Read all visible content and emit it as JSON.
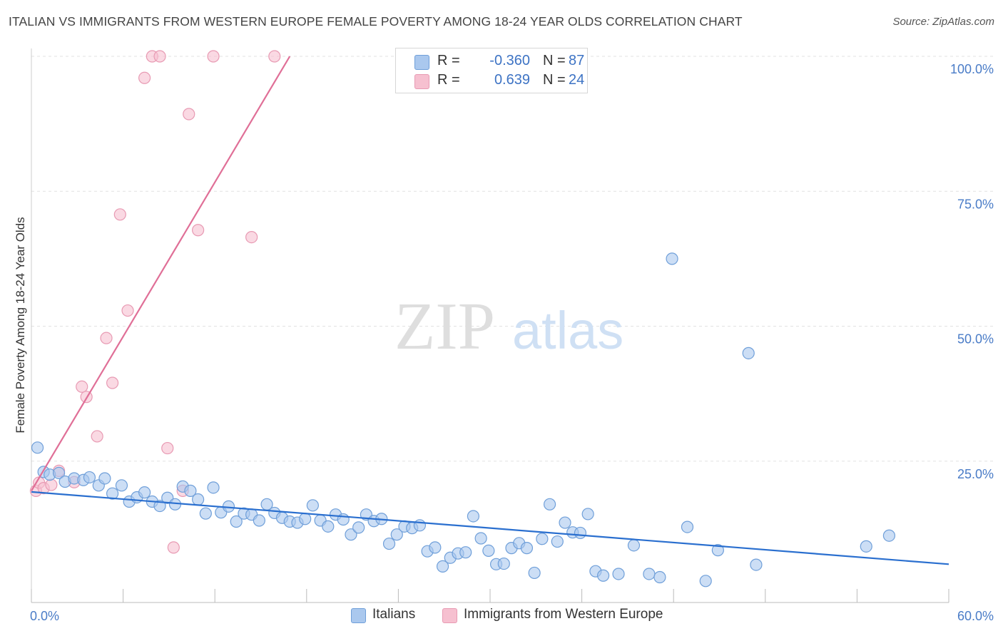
{
  "header": {
    "title": "ITALIAN VS IMMIGRANTS FROM WESTERN EUROPE FEMALE POVERTY AMONG 18-24 YEAR OLDS CORRELATION CHART",
    "source": "Source: ZipAtlas.com"
  },
  "watermark": {
    "zip": "ZIP",
    "atlas": "atlas"
  },
  "legend": {
    "italians": {
      "r_label": "R =",
      "r_value": "-0.360",
      "n_label": "N =",
      "n_value": "87"
    },
    "immigrants": {
      "r_label": "R =",
      "r_value": "0.639",
      "n_label": "N =",
      "n_value": "24"
    }
  },
  "bottom_legend": {
    "italians": "Italians",
    "immigrants": "Immigrants from Western Europe"
  },
  "colors": {
    "blue_fill": "#aac8ee",
    "blue_stroke": "#6f9fd9",
    "blue_line": "#2a6fcf",
    "pink_fill": "#f6c0d0",
    "pink_stroke": "#e89ab3",
    "pink_line": "#e06f97",
    "grid": "#e2e2e2",
    "tick_text": "#4a7cc7"
  },
  "chart_data": {
    "type": "scatter",
    "title": "ITALIAN VS IMMIGRANTS FROM WESTERN EUROPE FEMALE POVERTY AMONG 18-24 YEAR OLDS CORRELATION CHART",
    "xlabel": "",
    "ylabel": "Female Poverty Among 18-24 Year Olds",
    "xlim": [
      0,
      60
    ],
    "ylim": [
      0,
      100
    ],
    "x_tick_labels": [
      "0.0%",
      "60.0%"
    ],
    "y_ticks": [
      25,
      50,
      75,
      100
    ],
    "y_tick_labels": [
      "25.0%",
      "50.0%",
      "75.0%",
      "100.0%"
    ],
    "grid": true,
    "series": [
      {
        "name": "Italians",
        "color": "#aac8ee",
        "points": [
          [
            0.4,
            27.5
          ],
          [
            0.8,
            23.0
          ],
          [
            1.2,
            22.5
          ],
          [
            1.8,
            22.8
          ],
          [
            2.2,
            21.2
          ],
          [
            2.8,
            21.8
          ],
          [
            3.4,
            21.5
          ],
          [
            3.8,
            22.0
          ],
          [
            4.4,
            20.5
          ],
          [
            4.8,
            21.8
          ],
          [
            5.3,
            19.0
          ],
          [
            5.9,
            20.5
          ],
          [
            6.4,
            17.5
          ],
          [
            6.9,
            18.3
          ],
          [
            7.4,
            19.2
          ],
          [
            7.9,
            17.5
          ],
          [
            8.4,
            16.7
          ],
          [
            8.9,
            18.2
          ],
          [
            9.4,
            17.0
          ],
          [
            9.9,
            20.3
          ],
          [
            10.4,
            19.5
          ],
          [
            10.9,
            17.9
          ],
          [
            11.4,
            15.3
          ],
          [
            11.9,
            20.1
          ],
          [
            12.4,
            15.5
          ],
          [
            12.9,
            16.6
          ],
          [
            13.4,
            13.8
          ],
          [
            13.9,
            15.3
          ],
          [
            14.4,
            15.1
          ],
          [
            14.9,
            14.0
          ],
          [
            15.4,
            17.0
          ],
          [
            15.9,
            15.4
          ],
          [
            16.4,
            14.5
          ],
          [
            16.9,
            13.8
          ],
          [
            17.4,
            13.6
          ],
          [
            17.9,
            14.3
          ],
          [
            18.4,
            16.8
          ],
          [
            18.9,
            14.0
          ],
          [
            19.4,
            12.9
          ],
          [
            19.9,
            15.1
          ],
          [
            20.4,
            14.2
          ],
          [
            20.9,
            11.4
          ],
          [
            21.4,
            12.7
          ],
          [
            21.9,
            15.1
          ],
          [
            22.4,
            13.9
          ],
          [
            22.9,
            14.3
          ],
          [
            23.4,
            9.7
          ],
          [
            23.9,
            11.4
          ],
          [
            24.4,
            12.9
          ],
          [
            24.9,
            12.6
          ],
          [
            25.4,
            13.1
          ],
          [
            25.9,
            8.3
          ],
          [
            26.4,
            9.0
          ],
          [
            26.9,
            5.5
          ],
          [
            27.4,
            7.1
          ],
          [
            27.9,
            7.9
          ],
          [
            28.4,
            8.1
          ],
          [
            28.9,
            14.8
          ],
          [
            29.4,
            10.7
          ],
          [
            29.9,
            8.4
          ],
          [
            30.4,
            5.9
          ],
          [
            30.9,
            6.0
          ],
          [
            31.4,
            8.9
          ],
          [
            31.9,
            9.8
          ],
          [
            32.4,
            8.9
          ],
          [
            32.9,
            4.3
          ],
          [
            33.4,
            10.6
          ],
          [
            33.9,
            17.0
          ],
          [
            34.4,
            10.1
          ],
          [
            34.9,
            13.6
          ],
          [
            35.4,
            11.8
          ],
          [
            35.9,
            11.7
          ],
          [
            36.4,
            15.2
          ],
          [
            36.9,
            4.6
          ],
          [
            37.4,
            3.8
          ],
          [
            38.4,
            4.1
          ],
          [
            39.4,
            9.4
          ],
          [
            40.4,
            4.1
          ],
          [
            41.1,
            3.5
          ],
          [
            41.9,
            62.5
          ],
          [
            42.9,
            12.8
          ],
          [
            44.1,
            2.8
          ],
          [
            44.9,
            8.5
          ],
          [
            46.9,
            45.0
          ],
          [
            47.4,
            5.8
          ],
          [
            54.6,
            9.2
          ],
          [
            56.1,
            11.2
          ]
        ],
        "trendline": {
          "x": [
            0,
            60
          ],
          "y": [
            19.3,
            5.9
          ]
        }
      },
      {
        "name": "Immigrants from Western Europe",
        "color": "#f6c0d0",
        "points": [
          [
            0.3,
            19.5
          ],
          [
            0.5,
            21.0
          ],
          [
            0.8,
            20.0
          ],
          [
            1.3,
            20.6
          ],
          [
            1.8,
            23.2
          ],
          [
            2.8,
            21.1
          ],
          [
            3.3,
            38.8
          ],
          [
            3.6,
            36.9
          ],
          [
            4.3,
            29.6
          ],
          [
            4.9,
            47.8
          ],
          [
            5.3,
            39.5
          ],
          [
            5.8,
            70.7
          ],
          [
            6.3,
            52.9
          ],
          [
            7.4,
            96.0
          ],
          [
            7.9,
            100.0
          ],
          [
            8.4,
            100.0
          ],
          [
            8.9,
            27.4
          ],
          [
            9.3,
            9.0
          ],
          [
            9.9,
            19.5
          ],
          [
            10.3,
            89.3
          ],
          [
            10.9,
            67.8
          ],
          [
            11.9,
            100.0
          ],
          [
            14.4,
            66.5
          ],
          [
            15.9,
            100.0
          ]
        ],
        "trendline": {
          "x": [
            0,
            16.9
          ],
          "y": [
            19.5,
            100.0
          ]
        }
      }
    ]
  }
}
